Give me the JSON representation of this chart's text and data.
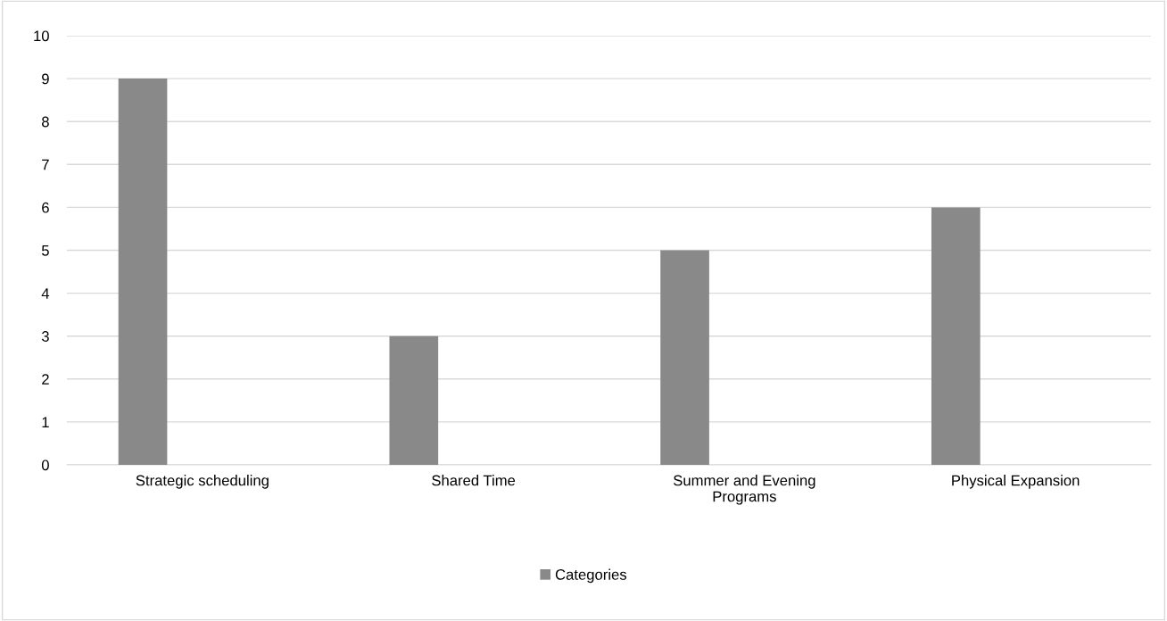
{
  "chart_data": {
    "type": "bar",
    "categories": [
      "Strategic scheduling",
      "Shared Time",
      "Summer and Evening\nPrograms",
      "Physical Expansion"
    ],
    "series": [
      {
        "name": "Categories",
        "color": "#898989",
        "values": [
          9,
          3,
          5,
          6
        ]
      }
    ],
    "ylim": [
      0,
      10
    ],
    "yticks": [
      0,
      1,
      2,
      3,
      4,
      5,
      6,
      7,
      8,
      9,
      10
    ],
    "grid": "y",
    "legend": "bottom"
  }
}
